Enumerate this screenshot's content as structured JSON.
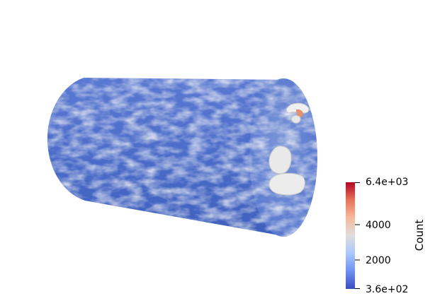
{
  "scene": {
    "object": "cylinder volume rendering",
    "surface_color_base": "#4b6cc9",
    "surface_color_light": "#c9cfdc",
    "isosurface_color": "#eeeeee"
  },
  "colorbar": {
    "title": "Count",
    "range": [
      360,
      6400
    ],
    "max_label": "6.4e+03",
    "min_label": "3.6e+02",
    "ticks": [
      {
        "value": 4000,
        "label": "4000"
      },
      {
        "value": 2000,
        "label": "2000"
      }
    ],
    "colormap": "coolwarm",
    "color_stops": [
      "#3b4cc0",
      "#6f92f3",
      "#aac7fd",
      "#dddddd",
      "#f7b89c",
      "#e7745b",
      "#b40426"
    ]
  }
}
